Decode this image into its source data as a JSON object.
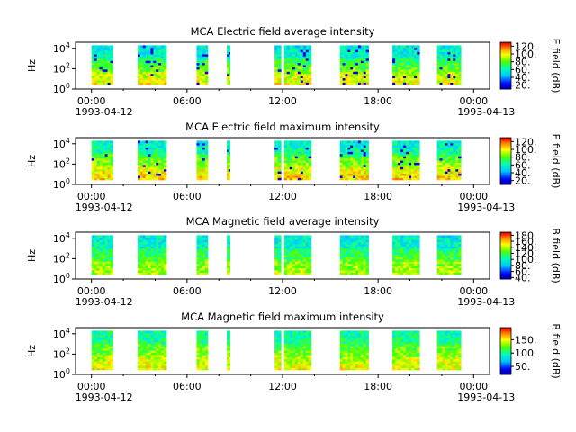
{
  "chart_data": [
    {
      "type": "heatmap",
      "title": "MCA  Electric field average intensity",
      "ylabel": "Hz",
      "colorbar_label": "E field (dB)",
      "colorbar_ticks": [
        "120.",
        "100.",
        "80.",
        "60.",
        "40.",
        "20."
      ],
      "colorbar_range": [
        10,
        130
      ],
      "y_ticks": [
        {
          "base": "10",
          "exp": "4"
        },
        {
          "base": "10",
          "exp": "2"
        },
        {
          "base": "10",
          "exp": "0"
        }
      ],
      "x_ticks": [
        "00:00",
        "06:00",
        "12:00",
        "18:00",
        "00:00"
      ],
      "x_date_left": "1993-04-12",
      "x_date_right": "1993-04-13",
      "log_y": true,
      "xlim_hours": [
        -1,
        25
      ],
      "ylim_log10": [
        0,
        4.6
      ],
      "segments_hours": [
        [
          0.0,
          1.35
        ],
        [
          2.9,
          4.7
        ],
        [
          6.6,
          7.3
        ],
        [
          8.5,
          8.7
        ],
        [
          11.5,
          11.9
        ],
        [
          12.1,
          13.8
        ],
        [
          15.6,
          17.4
        ],
        [
          18.9,
          20.6
        ],
        [
          21.7,
          23.2
        ]
      ],
      "spectral_profile": {
        "low_band_db": 90,
        "mid_band_db": 70,
        "high_band_db": 55
      }
    },
    {
      "type": "heatmap",
      "title": "MCA  Electric field maximum intensity",
      "ylabel": "Hz",
      "colorbar_label": "E field (dB)",
      "colorbar_ticks": [
        "120.",
        "100.",
        "80.",
        "60.",
        "40.",
        "20."
      ],
      "colorbar_range": [
        10,
        130
      ],
      "y_ticks": [
        {
          "base": "10",
          "exp": "4"
        },
        {
          "base": "10",
          "exp": "2"
        },
        {
          "base": "10",
          "exp": "0"
        }
      ],
      "x_ticks": [
        "00:00",
        "06:00",
        "12:00",
        "18:00",
        "00:00"
      ],
      "x_date_left": "1993-04-12",
      "x_date_right": "1993-04-13",
      "log_y": true,
      "xlim_hours": [
        -1,
        25
      ],
      "ylim_log10": [
        0,
        4.6
      ],
      "segments_hours": [
        [
          0.0,
          1.35
        ],
        [
          2.9,
          4.7
        ],
        [
          6.6,
          7.3
        ],
        [
          8.5,
          8.7
        ],
        [
          11.5,
          11.9
        ],
        [
          12.1,
          13.8
        ],
        [
          15.6,
          17.4
        ],
        [
          18.9,
          20.6
        ],
        [
          21.7,
          23.2
        ]
      ],
      "spectral_profile": {
        "low_band_db": 95,
        "mid_band_db": 75,
        "high_band_db": 58
      }
    },
    {
      "type": "heatmap",
      "title": "MCA  Magnetic field average intensity",
      "ylabel": "Hz",
      "colorbar_label": "B field (dB)",
      "colorbar_ticks": [
        "180.",
        "160.",
        "140.",
        "120.",
        "100.",
        "80.",
        "60.",
        "40."
      ],
      "colorbar_range": [
        35,
        190
      ],
      "y_ticks": [
        {
          "base": "10",
          "exp": "4"
        },
        {
          "base": "10",
          "exp": "2"
        },
        {
          "base": "10",
          "exp": "0"
        }
      ],
      "x_ticks": [
        "00:00",
        "06:00",
        "12:00",
        "18:00",
        "00:00"
      ],
      "x_date_left": "1993-04-12",
      "x_date_right": "1993-04-13",
      "log_y": true,
      "xlim_hours": [
        -1,
        25
      ],
      "ylim_log10": [
        0,
        4.6
      ],
      "segments_hours": [
        [
          0.0,
          1.35
        ],
        [
          2.9,
          4.7
        ],
        [
          6.6,
          7.3
        ],
        [
          8.5,
          8.7
        ],
        [
          11.5,
          11.9
        ],
        [
          12.1,
          13.8
        ],
        [
          15.6,
          17.4
        ],
        [
          18.9,
          20.6
        ],
        [
          21.7,
          23.2
        ]
      ],
      "spectral_profile": {
        "low_band_db": 130,
        "mid_band_db": 110,
        "high_band_db": 95
      }
    },
    {
      "type": "heatmap",
      "title": "MCA  Magnetic field maximum intensity",
      "ylabel": "Hz",
      "colorbar_label": "B field (dB)",
      "colorbar_ticks": [
        "150.",
        "100.",
        "50."
      ],
      "colorbar_range": [
        20,
        195
      ],
      "y_ticks": [
        {
          "base": "10",
          "exp": "4"
        },
        {
          "base": "10",
          "exp": "2"
        },
        {
          "base": "10",
          "exp": "0"
        }
      ],
      "x_ticks": [
        "00:00",
        "06:00",
        "12:00",
        "18:00",
        "00:00"
      ],
      "x_date_left": "1993-04-12",
      "x_date_right": "1993-04-13",
      "log_y": true,
      "xlim_hours": [
        -1,
        25
      ],
      "ylim_log10": [
        0,
        4.6
      ],
      "segments_hours": [
        [
          0.0,
          1.35
        ],
        [
          2.9,
          4.7
        ],
        [
          6.6,
          7.3
        ],
        [
          8.5,
          8.7
        ],
        [
          11.5,
          11.9
        ],
        [
          12.1,
          13.8
        ],
        [
          15.6,
          17.4
        ],
        [
          18.9,
          20.6
        ],
        [
          21.7,
          23.2
        ]
      ],
      "spectral_profile": {
        "low_band_db": 140,
        "mid_band_db": 118,
        "high_band_db": 100
      }
    }
  ]
}
